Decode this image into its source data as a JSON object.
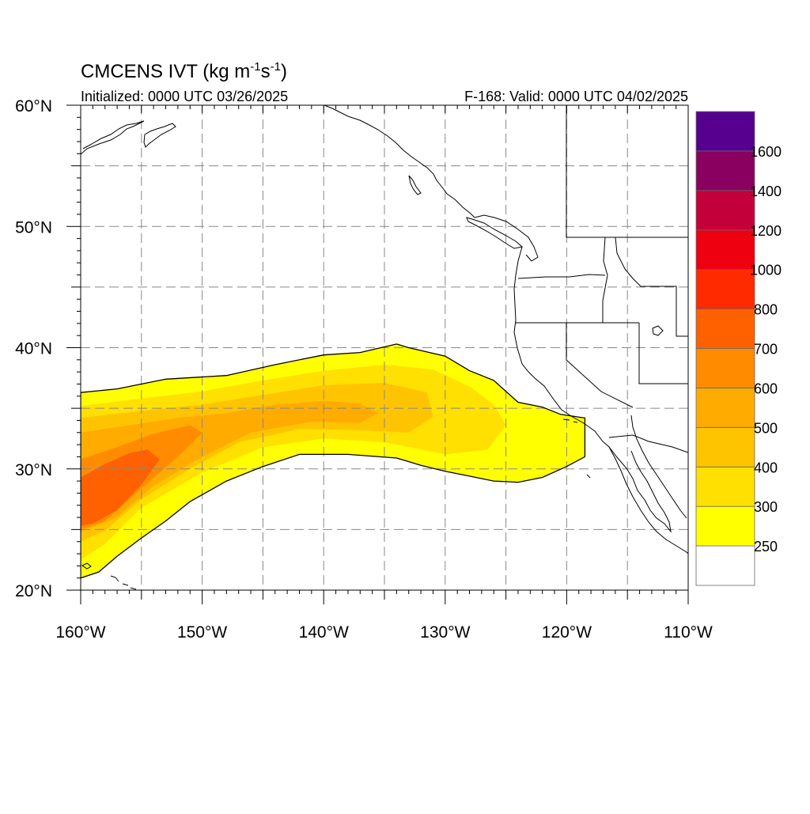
{
  "title": {
    "main": "CMCENS IVT (kg m",
    "sup1": "-1",
    "mid": "s",
    "sup2": "-1",
    "close": ")"
  },
  "subtitle_left": "Initialized: 0000 UTC 03/26/2025",
  "subtitle_right": "F-168: Valid: 0000 UTC 04/02/2025",
  "map": {
    "lon_range": [
      -160,
      -110
    ],
    "lat_range": [
      20,
      60
    ],
    "lon_grid_step": 5,
    "lat_grid_step": 5,
    "lon_labels": [
      {
        "lon": -160,
        "text": "160°W"
      },
      {
        "lon": -150,
        "text": "150°W"
      },
      {
        "lon": -140,
        "text": "140°W"
      },
      {
        "lon": -130,
        "text": "130°W"
      },
      {
        "lon": -120,
        "text": "120°W"
      },
      {
        "lon": -110,
        "text": "110°W"
      }
    ],
    "lat_labels": [
      {
        "lat": 60,
        "text": "60°N"
      },
      {
        "lat": 50,
        "text": "50°N"
      },
      {
        "lat": 40,
        "text": "40°N"
      },
      {
        "lat": 30,
        "text": "30°N"
      },
      {
        "lat": 20,
        "text": "20°N"
      }
    ],
    "grid_color": "#888888",
    "coastline_color": "#000000"
  },
  "colorbar": {
    "levels": [
      250,
      300,
      400,
      500,
      600,
      700,
      800,
      1000,
      1200,
      1400,
      1600
    ],
    "colors": [
      "#ffffff",
      "#ffff00",
      "#ffe000",
      "#ffc400",
      "#ffab00",
      "#ff8c00",
      "#ff6000",
      "#ff2a00",
      "#ee0010",
      "#c4003a",
      "#8a0060",
      "#570090"
    ],
    "labels": [
      "250",
      "300",
      "400",
      "500",
      "600",
      "700",
      "800",
      "1000",
      "1200",
      "1400",
      "1600"
    ]
  },
  "ivt_field": {
    "outer_250": [
      [
        -160,
        36.3
      ],
      [
        -157,
        36.6
      ],
      [
        -153,
        37.4
      ],
      [
        -148,
        37.7
      ],
      [
        -144,
        38.6
      ],
      [
        -140,
        39.4
      ],
      [
        -137,
        39.6
      ],
      [
        -134,
        40.3
      ],
      [
        -133,
        40.0
      ],
      [
        -130,
        39.3
      ],
      [
        -128,
        38.1
      ],
      [
        -126,
        37.3
      ],
      [
        -124,
        35.5
      ],
      [
        -122,
        35.1
      ],
      [
        -120.5,
        34.5
      ],
      [
        -118.5,
        34.2
      ],
      [
        -118.5,
        31.0
      ],
      [
        -120,
        30.2
      ],
      [
        -122,
        29.3
      ],
      [
        -124,
        28.9
      ],
      [
        -126,
        29.0
      ],
      [
        -128,
        29.4
      ],
      [
        -130,
        29.8
      ],
      [
        -132,
        30.3
      ],
      [
        -134,
        30.9
      ],
      [
        -138,
        31.2
      ],
      [
        -142,
        31.2
      ],
      [
        -145,
        30.2
      ],
      [
        -148,
        29.0
      ],
      [
        -151,
        27.3
      ],
      [
        -153,
        25.7
      ],
      [
        -155,
        24.3
      ],
      [
        -157,
        22.8
      ],
      [
        -158.5,
        21.5
      ],
      [
        -160,
        21.0
      ]
    ],
    "bands": [
      {
        "level": 300,
        "polygon": [
          [
            -160,
            35.2
          ],
          [
            -155,
            35.8
          ],
          [
            -150,
            36.4
          ],
          [
            -145,
            37.3
          ],
          [
            -140,
            38.1
          ],
          [
            -135,
            38.6
          ],
          [
            -131,
            38.2
          ],
          [
            -128,
            36.8
          ],
          [
            -126,
            35.3
          ],
          [
            -125,
            33.6
          ],
          [
            -126.5,
            31.6
          ],
          [
            -130,
            31.2
          ],
          [
            -135,
            32.2
          ],
          [
            -140,
            32.5
          ],
          [
            -145,
            31.8
          ],
          [
            -150,
            29.7
          ],
          [
            -155,
            26.8
          ],
          [
            -158,
            23.8
          ],
          [
            -160,
            22.5
          ]
        ]
      },
      {
        "level": 400,
        "polygon": [
          [
            -160,
            34.2
          ],
          [
            -155,
            34.8
          ],
          [
            -150,
            35.3
          ],
          [
            -145,
            36.1
          ],
          [
            -140,
            36.9
          ],
          [
            -135,
            37.1
          ],
          [
            -131.5,
            36.3
          ],
          [
            -131,
            34.3
          ],
          [
            -133,
            33.0
          ],
          [
            -137,
            33.2
          ],
          [
            -142,
            33.3
          ],
          [
            -147,
            32.2
          ],
          [
            -151,
            30.0
          ],
          [
            -155,
            27.5
          ],
          [
            -158,
            24.9
          ],
          [
            -160,
            24.0
          ]
        ]
      },
      {
        "level": 500,
        "polygon": [
          [
            -160,
            33.0
          ],
          [
            -156,
            33.6
          ],
          [
            -152,
            34.2
          ],
          [
            -148,
            34.6
          ],
          [
            -144,
            35.3
          ],
          [
            -140,
            35.6
          ],
          [
            -137,
            35.4
          ],
          [
            -135.5,
            34.6
          ],
          [
            -137,
            33.8
          ],
          [
            -141,
            33.9
          ],
          [
            -146,
            33.0
          ],
          [
            -150,
            31.0
          ],
          [
            -154,
            28.6
          ],
          [
            -157,
            26.0
          ],
          [
            -160,
            24.8
          ]
        ]
      },
      {
        "level": 600,
        "polygon": [
          [
            -160,
            30.8
          ],
          [
            -157,
            31.8
          ],
          [
            -154,
            32.9
          ],
          [
            -151,
            33.6
          ],
          [
            -150,
            33.0
          ],
          [
            -152,
            31.0
          ],
          [
            -155,
            28.4
          ],
          [
            -158,
            25.7
          ],
          [
            -160,
            25.0
          ]
        ]
      },
      {
        "level": 700,
        "polygon": [
          [
            -160,
            29.3
          ],
          [
            -158,
            30.4
          ],
          [
            -156,
            31.3
          ],
          [
            -154.5,
            31.6
          ],
          [
            -153.5,
            30.8
          ],
          [
            -155,
            28.7
          ],
          [
            -157,
            26.6
          ],
          [
            -159,
            25.5
          ],
          [
            -160,
            25.3
          ]
        ]
      }
    ]
  }
}
